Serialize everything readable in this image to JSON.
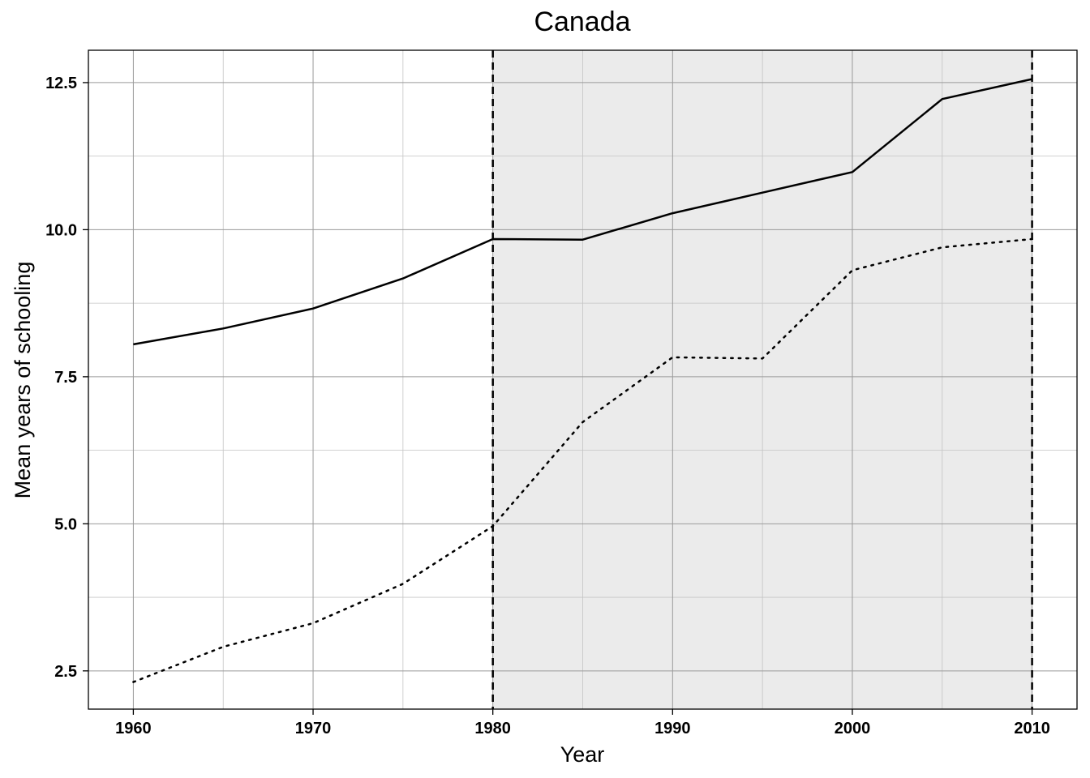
{
  "chart_data": {
    "type": "line",
    "title": "Canada",
    "xlabel": "Year",
    "ylabel": "Mean years of schooling",
    "xlim": [
      1957.5,
      2012.5
    ],
    "ylim": [
      1.85,
      13.05
    ],
    "x_ticks": [
      1960,
      1970,
      1980,
      1990,
      2000,
      2010
    ],
    "x_tick_labels": [
      "1960",
      "1970",
      "1980",
      "1990",
      "2000",
      "2010"
    ],
    "y_ticks": [
      2.5,
      5.0,
      7.5,
      10.0,
      12.5
    ],
    "y_tick_labels": [
      "2.5",
      "5.0",
      "7.5",
      "10.0",
      "12.5"
    ],
    "x_minor_ticks": [
      1965,
      1975,
      1985,
      1995,
      2005
    ],
    "y_minor_ticks": [
      3.75,
      6.25,
      8.75,
      11.25
    ],
    "grid": true,
    "shaded_region": {
      "x_start": 1980,
      "x_end": 2010,
      "color": "#ebebeb"
    },
    "vertical_lines": [
      {
        "x": 1980,
        "style": "dashed"
      },
      {
        "x": 2010,
        "style": "dashed"
      }
    ],
    "series": [
      {
        "name": "series-solid",
        "style": "solid",
        "x": [
          1960,
          1965,
          1970,
          1975,
          1980,
          1985,
          1990,
          1995,
          2000,
          2005,
          2010
        ],
        "values": [
          8.05,
          8.32,
          8.66,
          9.17,
          9.84,
          9.83,
          10.28,
          10.63,
          10.98,
          12.22,
          12.56
        ]
      },
      {
        "name": "series-dotted",
        "style": "dotted",
        "x": [
          1960,
          1965,
          1970,
          1975,
          1980,
          1985,
          1990,
          1995,
          2000,
          2005,
          2010
        ],
        "values": [
          2.31,
          2.91,
          3.31,
          3.98,
          4.96,
          6.73,
          7.83,
          7.81,
          9.31,
          9.7,
          9.84
        ]
      }
    ]
  }
}
